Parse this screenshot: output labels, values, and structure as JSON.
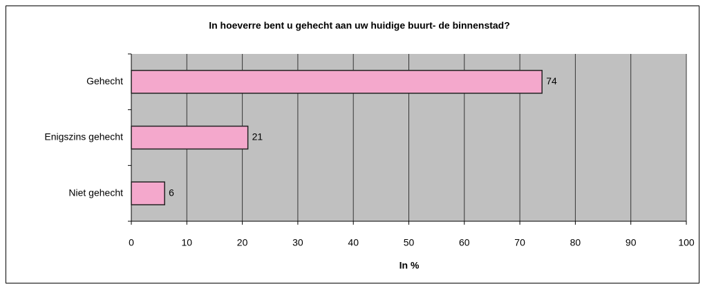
{
  "chart_data": {
    "type": "bar",
    "orientation": "horizontal",
    "title": "In hoeverre bent u gehecht aan uw huidige buurt- de binnenstad?",
    "x_label": "In %",
    "categories": [
      "Gehecht",
      "Enigszins gehecht",
      "Niet gehecht"
    ],
    "values": [
      74,
      21,
      6
    ],
    "color": "#f4a8cc",
    "xlim": [
      0,
      100
    ],
    "xticks": [
      0,
      10,
      20,
      30,
      40,
      50,
      60,
      70,
      80,
      90,
      100
    ],
    "grid": true
  }
}
